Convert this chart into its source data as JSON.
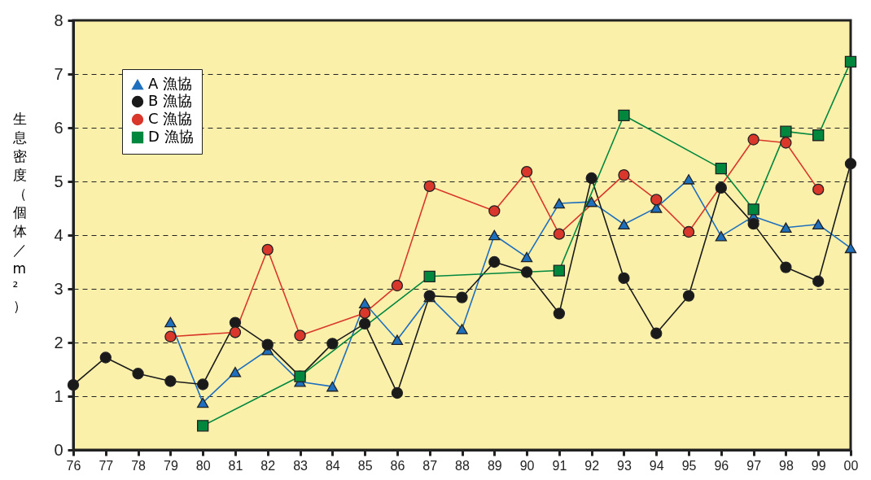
{
  "chart_data": {
    "type": "line",
    "ylabel": "生息密度（個体／m²）",
    "categories": [
      "76",
      "77",
      "78",
      "79",
      "80",
      "81",
      "82",
      "83",
      "84",
      "85",
      "86",
      "87",
      "88",
      "89",
      "90",
      "91",
      "92",
      "93",
      "94",
      "95",
      "96",
      "97",
      "98",
      "99",
      "00"
    ],
    "ylim": [
      0,
      8
    ],
    "yticks": [
      0,
      1,
      2,
      3,
      4,
      5,
      6,
      7,
      8
    ],
    "grid": "y",
    "legend": "top left",
    "line_style": "solid",
    "series": [
      {
        "name": "A 漁協",
        "color": "#1f6fbf",
        "marker": "triangle",
        "values": [
          null,
          null,
          null,
          2.38,
          0.88,
          1.45,
          1.86,
          1.27,
          1.18,
          2.73,
          2.05,
          2.85,
          2.25,
          4.0,
          3.59,
          4.59,
          4.62,
          4.2,
          4.51,
          5.04,
          3.98,
          4.35,
          4.14,
          4.2,
          3.76
        ]
      },
      {
        "name": "B 漁協",
        "color": "#1a1a1a",
        "marker": "circle",
        "values": [
          1.21,
          1.72,
          1.42,
          1.28,
          1.22,
          2.37,
          1.96,
          1.37,
          1.98,
          2.35,
          1.06,
          2.87,
          2.84,
          3.5,
          3.31,
          2.54,
          5.06,
          3.2,
          2.17,
          2.87,
          4.88,
          4.21,
          3.4,
          3.14,
          5.33
        ]
      },
      {
        "name": "C 漁協",
        "color": "#d9372b",
        "marker": "circle",
        "values": [
          null,
          null,
          null,
          2.11,
          null,
          2.19,
          3.73,
          2.13,
          null,
          2.55,
          3.06,
          4.91,
          null,
          4.45,
          5.18,
          4.02,
          null,
          5.12,
          4.66,
          4.06,
          null,
          5.78,
          5.72,
          4.85,
          null
        ]
      },
      {
        "name": "D 漁協",
        "color": "#00873e",
        "marker": "square",
        "values": [
          null,
          null,
          null,
          null,
          0.45,
          null,
          null,
          1.37,
          null,
          null,
          null,
          3.23,
          null,
          null,
          null,
          3.34,
          null,
          6.23,
          null,
          null,
          5.24,
          4.48,
          5.93,
          5.86,
          7.23
        ]
      }
    ]
  }
}
